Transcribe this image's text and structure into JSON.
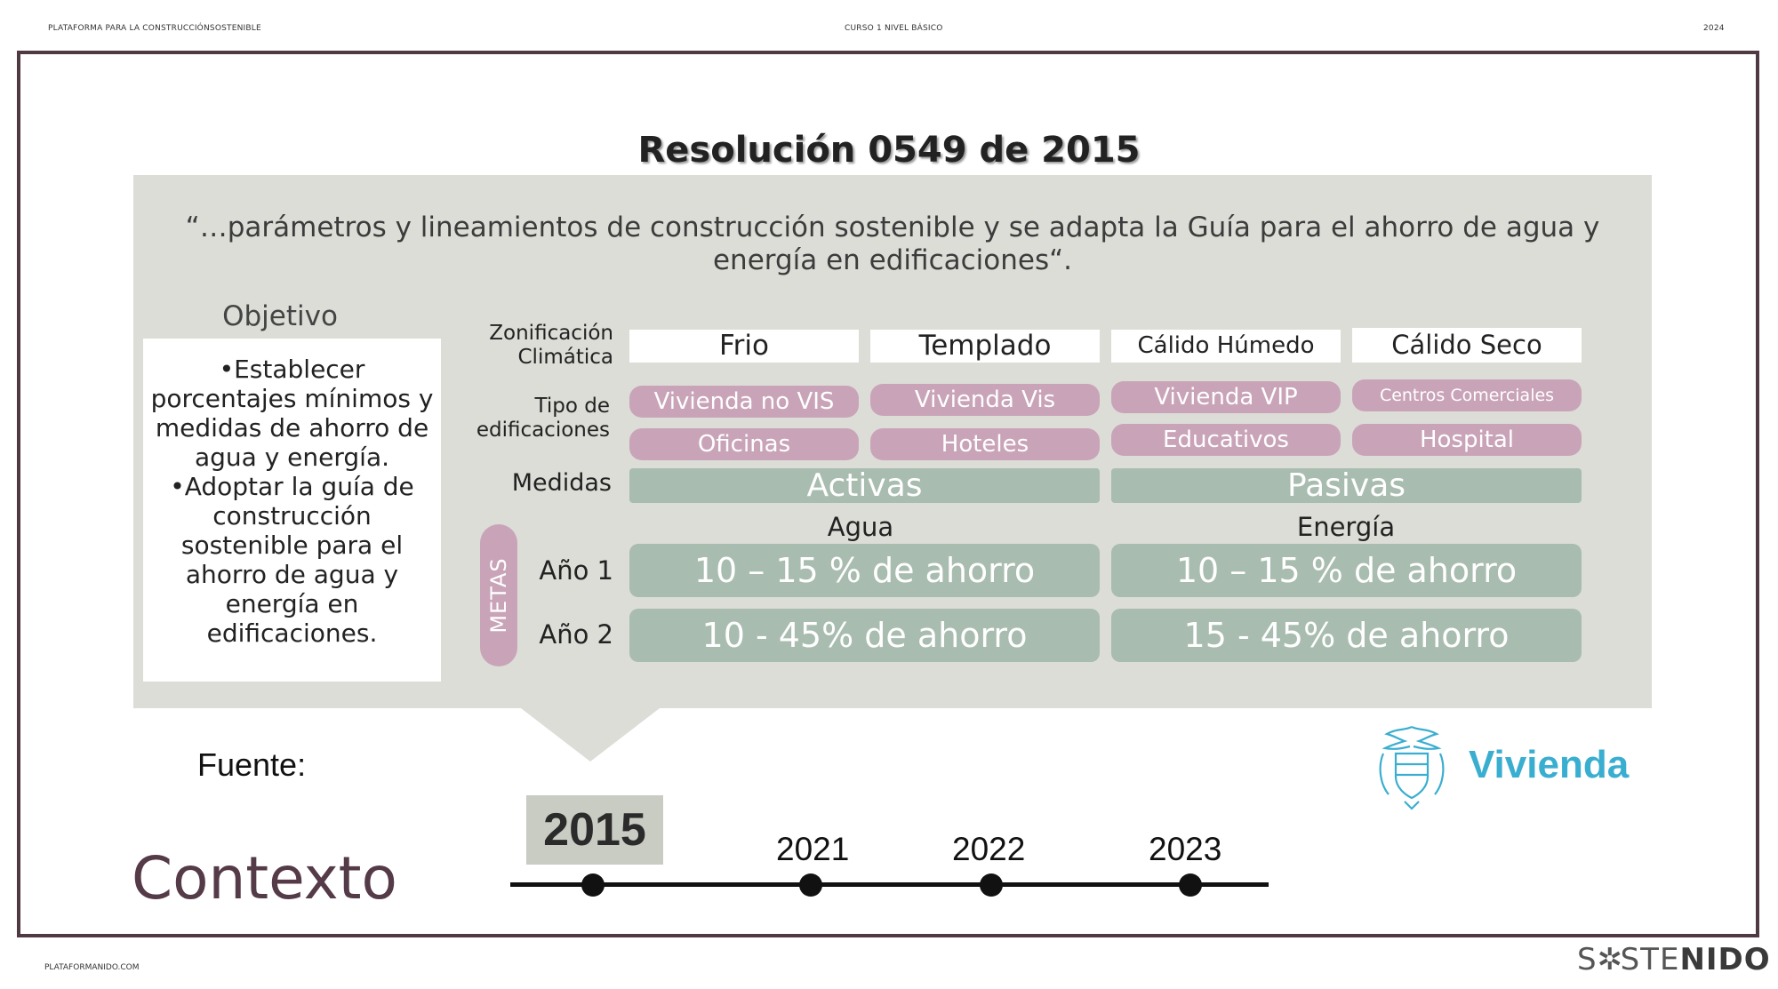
{
  "header": {
    "left": "PLATAFORMA PARA LA CONSTRUCCIÓNSOSTENIBLE",
    "center": "CURSO 1 NIVEL BÁSICO",
    "right": "2024"
  },
  "slide": {
    "title": "Resolución 0549 de 2015",
    "quote_line1": "“…parámetros y lineamientos de construcción sostenible y se adapta la Guía para el ahorro de agua y",
    "quote_line2": "energía en edificaciones“.",
    "objective": {
      "heading": "Objetivo",
      "bullet1": "•Establecer porcentajes mínimos y medidas de ahorro de agua y energía.",
      "bullet2": "•Adoptar la guía de construcción sostenible para el ahorro de agua y energía en edificaciones."
    },
    "table": {
      "zonificacion_label_1": "Zonificación",
      "zonificacion_label_2": "Climática",
      "climates": [
        "Frio",
        "Templado",
        "Cálido Húmedo",
        "Cálido Seco"
      ],
      "tipo_label_1": "Tipo de",
      "tipo_label_2": "edificaciones",
      "building_types_row1": [
        "Vivienda no VIS",
        "Vivienda Vis",
        "Vivienda VIP",
        "Centros Comerciales"
      ],
      "building_types_row2": [
        "Oficinas",
        "Hoteles",
        "Educativos",
        "Hospital"
      ],
      "medidas_label": "Medidas",
      "medidas": [
        "Activas",
        "Pasivas"
      ],
      "resources": [
        "Agua",
        "Energía"
      ],
      "metas_label": "METAS",
      "year1_label": "Año 1",
      "year2_label": "Año 2",
      "year1_goals": [
        "10 – 15 % de ahorro",
        "10 – 15 % de ahorro"
      ],
      "year2_goals": [
        "10 - 45% de ahorro",
        "15 - 45% de ahorro"
      ]
    },
    "fuente_label": "Fuente:",
    "source_logo_text": "Vivienda",
    "section_title": "Contexto",
    "timeline": {
      "years": [
        "2015",
        "2021",
        "2022",
        "2023"
      ],
      "highlighted": "2015"
    }
  },
  "footer": {
    "left": "PLATAFORMANIDO.COM",
    "brand_part1": "S",
    "brand_part2": "STE",
    "brand_part3": "NIDO"
  },
  "colors": {
    "frame": "#4f3a44",
    "panel": "#dcddd7",
    "pink": "#c9a4b8",
    "green": "#a8bcaf",
    "contexto": "#553a48",
    "vivienda": "#3aaed0"
  }
}
